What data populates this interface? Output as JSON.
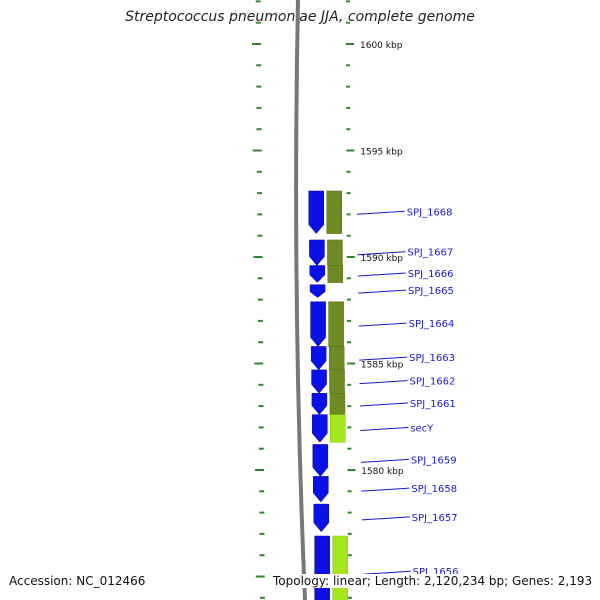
{
  "title": "Streptococcus pneumoniae JJA, complete genome",
  "footer": {
    "accession": "Accession: NC_012466",
    "summary": "Topology: linear; Length: 2,120,234 bp; Genes: 2,193"
  },
  "colors": {
    "background": "#ffffff",
    "tick": "#2a8a2a",
    "backbone": "#777777",
    "cds": "#0a10e6",
    "gene_dark": "#6e8a22",
    "gene_light": "#a6e61e",
    "label": "#1a1acc",
    "scale_text": "#111111"
  },
  "scale_labels": [
    {
      "kbp": 1600,
      "text": "1600 kbp"
    },
    {
      "kbp": 1595,
      "text": "1595 kbp"
    },
    {
      "kbp": 1590,
      "text": "1590 kbp"
    },
    {
      "kbp": 1585,
      "text": "1585 kbp"
    },
    {
      "kbp": 1580,
      "text": "1580 kbp"
    },
    {
      "kbp": 1575,
      "text": "1575 kbp"
    }
  ],
  "view": {
    "top_kbp": 1601.7,
    "bottom_kbp": 1573.5
  },
  "genes": [
    {
      "label": "SPJ_1668",
      "start_kbp": 1591.1,
      "end_kbp": 1593.1,
      "type": "dark"
    },
    {
      "label": "SPJ_1667",
      "start_kbp": 1589.6,
      "end_kbp": 1590.8,
      "type": "dark"
    },
    {
      "label": "SPJ_1666",
      "start_kbp": 1588.8,
      "end_kbp": 1589.6,
      "type": "dark"
    },
    {
      "label": "SPJ_1665",
      "start_kbp": 1588.1,
      "end_kbp": 1588.7,
      "type": "none"
    },
    {
      "label": "SPJ_1664",
      "start_kbp": 1585.8,
      "end_kbp": 1587.9,
      "type": "dark"
    },
    {
      "label": "SPJ_1663",
      "start_kbp": 1584.7,
      "end_kbp": 1585.8,
      "type": "dark"
    },
    {
      "label": "SPJ_1662",
      "start_kbp": 1583.6,
      "end_kbp": 1584.7,
      "type": "dark"
    },
    {
      "label": "SPJ_1661",
      "start_kbp": 1582.6,
      "end_kbp": 1583.6,
      "type": "dark"
    },
    {
      "label": "secY",
      "start_kbp": 1581.3,
      "end_kbp": 1582.6,
      "type": "light"
    },
    {
      "label": "SPJ_1659",
      "start_kbp": 1579.7,
      "end_kbp": 1581.2,
      "type": "none"
    },
    {
      "label": "SPJ_1658",
      "start_kbp": 1578.5,
      "end_kbp": 1579.7,
      "type": "none"
    },
    {
      "label": "SPJ_1657",
      "start_kbp": 1577.1,
      "end_kbp": 1578.4,
      "type": "none"
    },
    {
      "label": "SPJ_1656",
      "start_kbp": 1573.5,
      "end_kbp": 1576.9,
      "type": "light"
    }
  ]
}
